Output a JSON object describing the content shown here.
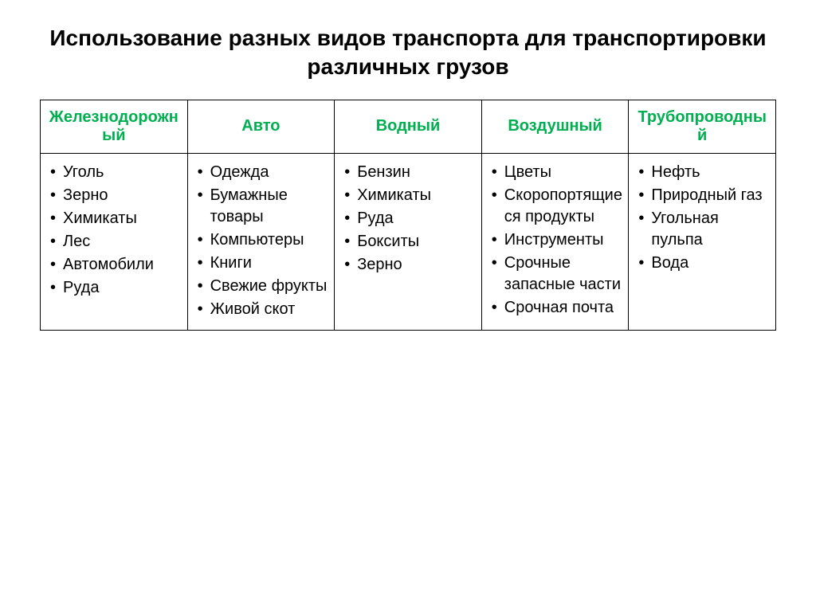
{
  "title": "Использование разных видов транспорта для транспортировки различных грузов",
  "table": {
    "columns": [
      "Железнодорожный",
      "Авто",
      "Водный",
      "Воздушный",
      "Трубопроводный"
    ],
    "items": [
      [
        "Уголь",
        "Зерно",
        "Химикаты",
        "Лес",
        "Автомобили",
        "Руда"
      ],
      [
        "Одежда",
        "Бумажные товары",
        "Компьютеры",
        "Книги",
        "Свежие фрукты",
        "Живой скот"
      ],
      [
        "Бензин",
        "Химикаты",
        "Руда",
        "Бокситы",
        "Зерно"
      ],
      [
        "Цветы",
        "Скоропортящиеся продукты",
        "Инструменты",
        "Срочные запасные части",
        "Срочная почта"
      ],
      [
        "Нефть",
        "Природный газ",
        "Угольная пульпа",
        "Вода"
      ]
    ],
    "header_color": "#00b050",
    "border_color": "#000000",
    "text_color": "#000000",
    "background_color": "#ffffff",
    "header_fontsize": 20,
    "cell_fontsize": 20,
    "title_fontsize": 28,
    "num_columns": 5
  }
}
